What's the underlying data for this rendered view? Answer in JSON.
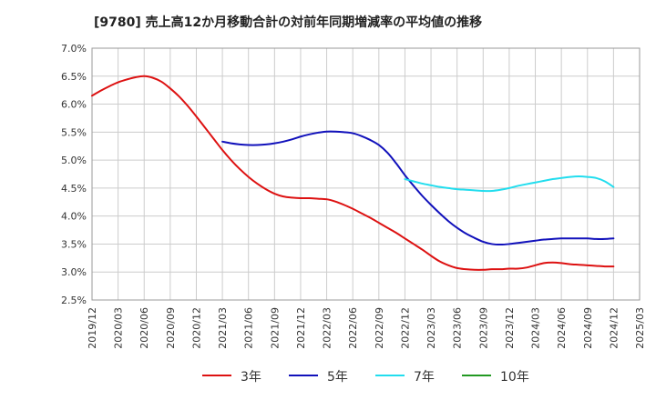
{
  "chart_data": {
    "type": "line",
    "title": "[9780]  売上高12か月移動合計の対前年同期増減率の平均値の推移",
    "xlabel": "",
    "ylabel": "",
    "x_ticks": [
      "2019/12",
      "2020/03",
      "2020/06",
      "2020/09",
      "2020/12",
      "2021/03",
      "2021/06",
      "2021/09",
      "2021/12",
      "2022/03",
      "2022/06",
      "2022/09",
      "2022/12",
      "2023/03",
      "2023/06",
      "2023/09",
      "2023/12",
      "2024/03",
      "2024/06",
      "2024/09",
      "2024/12",
      "2025/03"
    ],
    "y_ticks": [
      "2.5%",
      "3.0%",
      "3.5%",
      "4.0%",
      "4.5%",
      "5.0%",
      "5.5%",
      "6.0%",
      "6.5%",
      "7.0%"
    ],
    "ylim": [
      2.5,
      7.0
    ],
    "grid": true,
    "legend_position": "bottom",
    "series": [
      {
        "name": "3年",
        "color": "#dd1111",
        "x": [
          "2019/12",
          "2020/01",
          "2020/02",
          "2020/03",
          "2020/04",
          "2020/05",
          "2020/06",
          "2020/07",
          "2020/08",
          "2020/09",
          "2020/10",
          "2020/11",
          "2020/12",
          "2021/01",
          "2021/02",
          "2021/03",
          "2021/04",
          "2021/05",
          "2021/06",
          "2021/07",
          "2021/08",
          "2021/09",
          "2021/10",
          "2021/11",
          "2021/12",
          "2022/01",
          "2022/02",
          "2022/03",
          "2022/04",
          "2022/05",
          "2022/06",
          "2022/07",
          "2022/08",
          "2022/09",
          "2022/10",
          "2022/11",
          "2022/12",
          "2023/01",
          "2023/02",
          "2023/03",
          "2023/04",
          "2023/05",
          "2023/06",
          "2023/07",
          "2023/08",
          "2023/09",
          "2023/10",
          "2023/11",
          "2023/12",
          "2024/01",
          "2024/02",
          "2024/03",
          "2024/04",
          "2024/05",
          "2024/06",
          "2024/07",
          "2024/08",
          "2024/09",
          "2024/10",
          "2024/11",
          "2024/12"
        ],
        "values": [
          6.15,
          6.24,
          6.32,
          6.39,
          6.44,
          6.48,
          6.5,
          6.47,
          6.4,
          6.28,
          6.14,
          5.97,
          5.78,
          5.58,
          5.38,
          5.18,
          5.0,
          4.84,
          4.7,
          4.58,
          4.48,
          4.4,
          4.35,
          4.33,
          4.32,
          4.32,
          4.31,
          4.3,
          4.26,
          4.2,
          4.13,
          4.05,
          3.97,
          3.88,
          3.79,
          3.7,
          3.6,
          3.5,
          3.4,
          3.29,
          3.19,
          3.12,
          3.07,
          3.05,
          3.04,
          3.04,
          3.05,
          3.05,
          3.06,
          3.06,
          3.08,
          3.12,
          3.16,
          3.17,
          3.16,
          3.14,
          3.13,
          3.12,
          3.11,
          3.1,
          3.1
        ]
      },
      {
        "name": "5年",
        "color": "#1111bb",
        "x": [
          "2021/03",
          "2021/04",
          "2021/05",
          "2021/06",
          "2021/07",
          "2021/08",
          "2021/09",
          "2021/10",
          "2021/11",
          "2021/12",
          "2022/01",
          "2022/02",
          "2022/03",
          "2022/04",
          "2022/05",
          "2022/06",
          "2022/07",
          "2022/08",
          "2022/09",
          "2022/10",
          "2022/11",
          "2022/12",
          "2023/01",
          "2023/02",
          "2023/03",
          "2023/04",
          "2023/05",
          "2023/06",
          "2023/07",
          "2023/08",
          "2023/09",
          "2023/10",
          "2023/11",
          "2023/12",
          "2024/01",
          "2024/02",
          "2024/03",
          "2024/04",
          "2024/05",
          "2024/06",
          "2024/07",
          "2024/08",
          "2024/09",
          "2024/10",
          "2024/11",
          "2024/12"
        ],
        "values": [
          5.33,
          5.3,
          5.28,
          5.27,
          5.27,
          5.28,
          5.3,
          5.33,
          5.37,
          5.42,
          5.46,
          5.49,
          5.51,
          5.51,
          5.5,
          5.48,
          5.43,
          5.36,
          5.27,
          5.13,
          4.94,
          4.73,
          4.54,
          4.36,
          4.2,
          4.05,
          3.91,
          3.79,
          3.69,
          3.61,
          3.54,
          3.5,
          3.49,
          3.5,
          3.52,
          3.54,
          3.56,
          3.58,
          3.59,
          3.6,
          3.6,
          3.6,
          3.6,
          3.59,
          3.59,
          3.6
        ]
      },
      {
        "name": "7年",
        "color": "#22ddee",
        "x": [
          "2022/12",
          "2023/01",
          "2023/02",
          "2023/03",
          "2023/04",
          "2023/05",
          "2023/06",
          "2023/07",
          "2023/08",
          "2023/09",
          "2023/10",
          "2023/11",
          "2023/12",
          "2024/01",
          "2024/02",
          "2024/03",
          "2024/04",
          "2024/05",
          "2024/06",
          "2024/07",
          "2024/08",
          "2024/09",
          "2024/10",
          "2024/11",
          "2024/12"
        ],
        "values": [
          4.66,
          4.62,
          4.58,
          4.55,
          4.52,
          4.5,
          4.48,
          4.47,
          4.46,
          4.45,
          4.45,
          4.47,
          4.5,
          4.54,
          4.57,
          4.6,
          4.63,
          4.66,
          4.68,
          4.7,
          4.71,
          4.7,
          4.68,
          4.62,
          4.52
        ]
      },
      {
        "name": "10年",
        "color": "#229922",
        "x": [],
        "values": []
      }
    ]
  }
}
